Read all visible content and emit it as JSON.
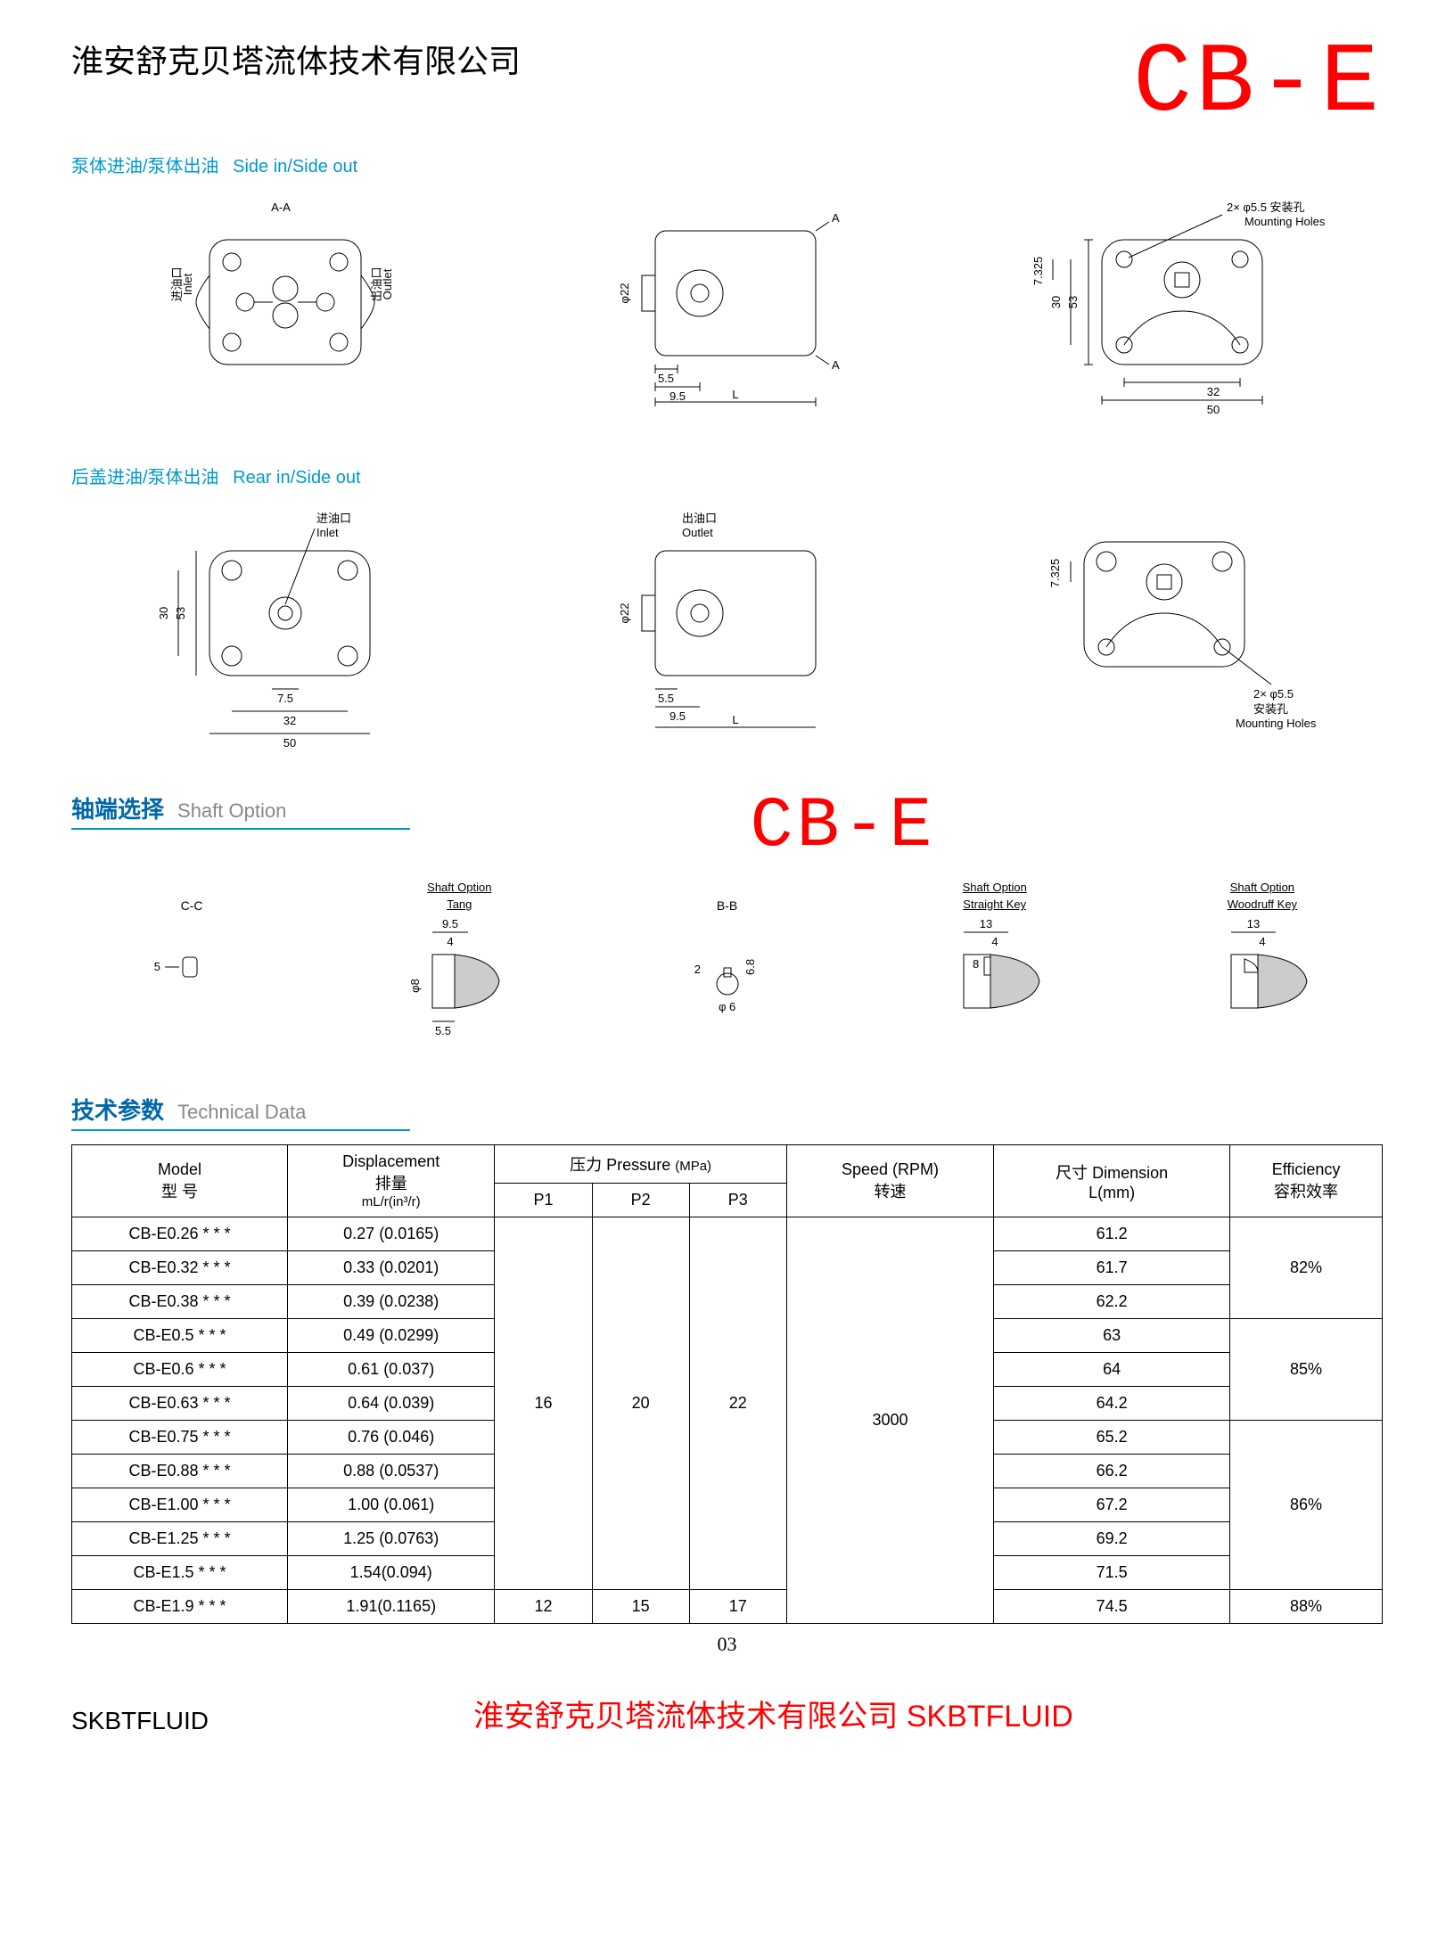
{
  "header": {
    "company_cn": "淮安舒克贝塔流体技术有限公司",
    "product_code": "CB-E"
  },
  "sections": {
    "side_in_out_cn": "泵体进油/泵体出油",
    "side_in_out_en": "Side in/Side out",
    "rear_in_out_cn": "后盖进油/泵体出油",
    "rear_in_out_en": "Rear in/Side out",
    "shaft_option_cn": "轴端选择",
    "shaft_option_en": "Shaft Option",
    "tech_data_cn": "技术参数",
    "tech_data_en": "Technical Data"
  },
  "diagram_labels": {
    "section_aa": "A-A",
    "inlet_cn": "进油口",
    "inlet_en": "Inlet",
    "outlet_cn": "出油口",
    "outlet_en": "Outlet",
    "mounting_holes_spec": "2× φ5.5  安装孔",
    "mounting_holes_en": "Mounting Holes",
    "mounting_holes_spec2": "2× φ5.5",
    "mounting_holes_cn": "安装孔",
    "dim_phi22": "φ22",
    "dim_5_5": "5.5",
    "dim_9_5": "9.5",
    "dim_L": "L",
    "dim_A": "A",
    "dim_53": "53",
    "dim_30": "30",
    "dim_7_325": "7.325",
    "dim_32": "32",
    "dim_50": "50",
    "dim_7_5": "7.5",
    "shaft_cc": "C-C",
    "shaft_bb": "B-B",
    "shaft_tang": "Tang",
    "shaft_straight": "Straight Key",
    "shaft_woodruff": "Woodruff Key",
    "shaft_option_lbl": "Shaft Option",
    "dim_4": "4",
    "dim_8": "8",
    "dim_13": "13",
    "dim_5": "5",
    "dim_2": "2",
    "dim_6_8": "6.8",
    "dim_phi8": "φ8",
    "dim_phi6": "φ 6"
  },
  "table": {
    "headers": {
      "model_en": "Model",
      "model_cn": "型  号",
      "displacement_en": "Displacement",
      "displacement_cn": "排量",
      "displacement_unit": "mL/r(in³/r)",
      "pressure_cn": "压力",
      "pressure_en": "Pressure",
      "pressure_unit": "(MPa)",
      "p1": "P1",
      "p2": "P2",
      "p3": "P3",
      "speed_en": "Speed (RPM)",
      "speed_cn": "转速",
      "dimension_cn": "尺寸",
      "dimension_en": "Dimension",
      "dimension_unit": "L(mm)",
      "efficiency_en": "Efficiency",
      "efficiency_cn": "容积效率"
    },
    "pressure_main": {
      "p1": "16",
      "p2": "20",
      "p3": "22"
    },
    "pressure_last": {
      "p1": "12",
      "p2": "15",
      "p3": "17"
    },
    "speed_main": "3000",
    "rows": [
      {
        "model": "CB-E0.26 * * *",
        "disp": "0.27 (0.0165)",
        "dim": "61.2"
      },
      {
        "model": "CB-E0.32 * * *",
        "disp": "0.33 (0.0201)",
        "dim": "61.7"
      },
      {
        "model": "CB-E0.38 * * *",
        "disp": "0.39 (0.0238)",
        "dim": "62.2"
      },
      {
        "model": "CB-E0.5 * * *",
        "disp": "0.49 (0.0299)",
        "dim": "63"
      },
      {
        "model": "CB-E0.6 * * *",
        "disp": "0.61 (0.037)",
        "dim": "64"
      },
      {
        "model": "CB-E0.63 * * *",
        "disp": "0.64 (0.039)",
        "dim": "64.2"
      },
      {
        "model": "CB-E0.75 * * *",
        "disp": "0.76 (0.046)",
        "dim": "65.2"
      },
      {
        "model": "CB-E0.88 * * *",
        "disp": "0.88 (0.0537)",
        "dim": "66.2"
      },
      {
        "model": "CB-E1.00 * * *",
        "disp": "1.00 (0.061)",
        "dim": "67.2"
      },
      {
        "model": "CB-E1.25 * * *",
        "disp": "1.25 (0.0763)",
        "dim": "69.2"
      },
      {
        "model": "CB-E1.5 * * *",
        "disp": "1.54(0.094)",
        "dim": "71.5"
      },
      {
        "model": "CB-E1.9 * * *",
        "disp": "1.91(0.1165)",
        "dim": "74.5"
      }
    ],
    "efficiency": [
      {
        "span": 3,
        "val": "82%"
      },
      {
        "span": 3,
        "val": "85%"
      },
      {
        "span": 5,
        "val": "86%"
      },
      {
        "span": 1,
        "val": "88%"
      }
    ]
  },
  "page_number": "03",
  "footer": {
    "brand": "SKBTFLUID",
    "company_red": "淮安舒克贝塔流体技术有限公司  SKBTFLUID"
  }
}
